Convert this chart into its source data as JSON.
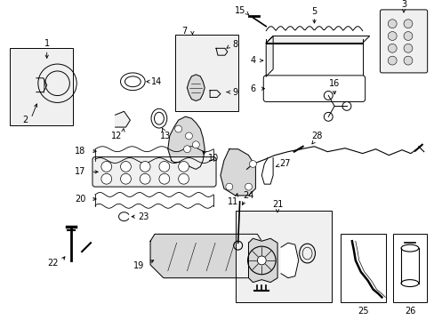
{
  "bg_color": "#ffffff",
  "line_color": "#000000",
  "fig_width": 4.89,
  "fig_height": 3.6,
  "dpi": 100,
  "gray_fill": "#d8d8d8",
  "light_gray": "#f0f0f0"
}
